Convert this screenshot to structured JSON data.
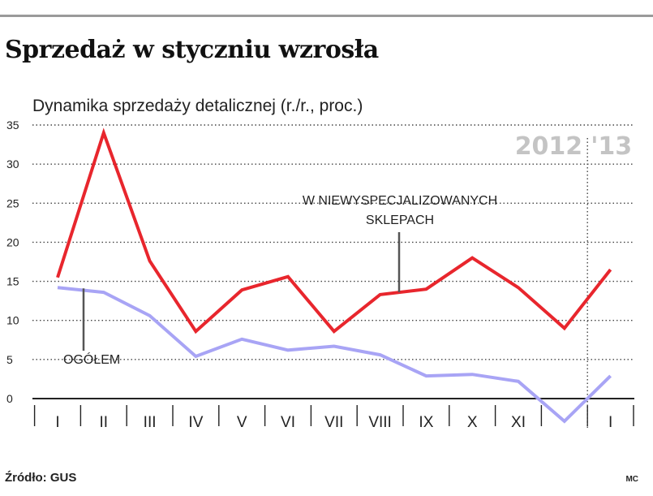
{
  "title": "Sprzedaż w styczniu wzrosła",
  "source": "Źródło: GUS",
  "author": "MC",
  "chart_data": {
    "type": "line",
    "title": "Sprzedaż w styczniu wzrosła",
    "subtitle": "Dynamika sprzedaży detalicznej (r./r., proc.)",
    "categories": [
      "I",
      "II",
      "III",
      "IV",
      "V",
      "VI",
      "VII",
      "VIII",
      "IX",
      "X",
      "XI",
      "",
      "I"
    ],
    "year_labels": [
      "2012",
      "'13"
    ],
    "yticks": [
      0,
      5,
      10,
      15,
      20,
      25,
      30,
      35
    ],
    "ylim": [
      -3,
      35
    ],
    "grid": true,
    "series": [
      {
        "name": "W NIEWYSPECJALIZOWANYCH SKLEPACH",
        "label_lines": [
          "W NIEWYSPECJALIZOWANYCH",
          "SKLEPACH"
        ],
        "color": "#e8262d",
        "values": [
          15.5,
          34,
          17.6,
          8.6,
          13.9,
          15.6,
          8.6,
          13.3,
          14,
          18,
          14.2,
          9,
          16.5
        ]
      },
      {
        "name": "OGÓŁEM",
        "label_lines": [
          "OGÓŁEM"
        ],
        "color": "#a8a4f5",
        "values": [
          14.2,
          13.6,
          10.6,
          5.4,
          7.6,
          6.2,
          6.7,
          5.6,
          2.9,
          3.1,
          2.2,
          -2.9,
          2.9
        ]
      }
    ]
  }
}
